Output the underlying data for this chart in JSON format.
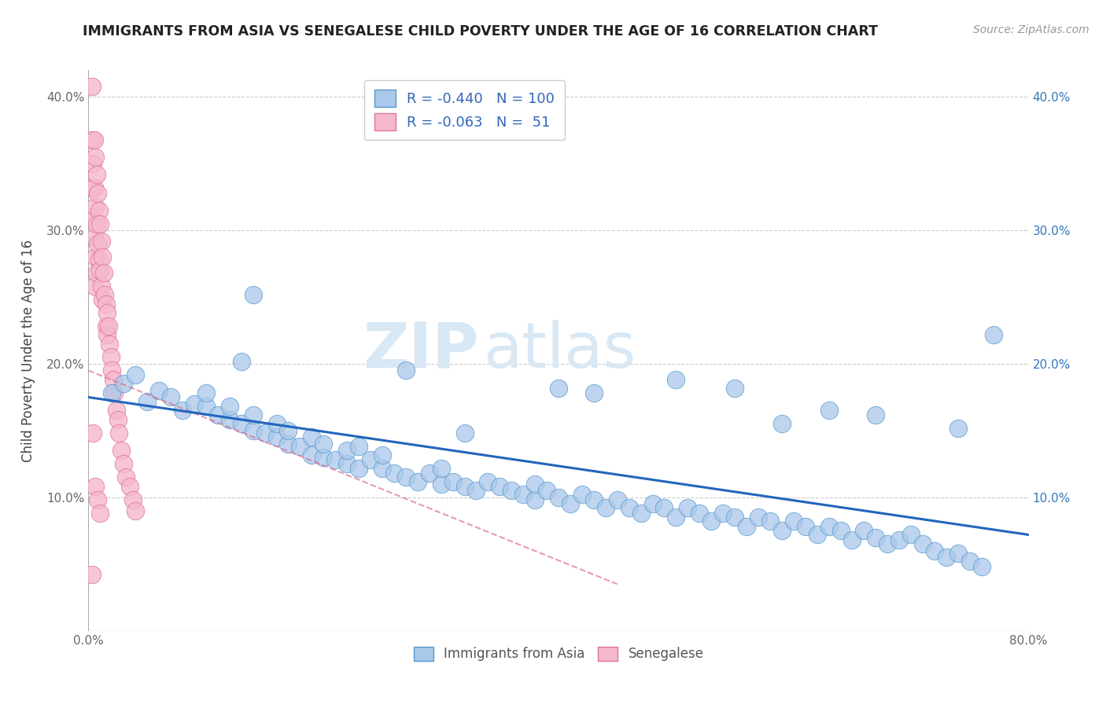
{
  "title": "IMMIGRANTS FROM ASIA VS SENEGALESE CHILD POVERTY UNDER THE AGE OF 16 CORRELATION CHART",
  "source": "Source: ZipAtlas.com",
  "ylabel": "Child Poverty Under the Age of 16",
  "xlim": [
    0.0,
    0.8
  ],
  "ylim": [
    0.0,
    0.42
  ],
  "x_ticks": [
    0.0,
    0.1,
    0.2,
    0.3,
    0.4,
    0.5,
    0.6,
    0.7,
    0.8
  ],
  "y_ticks": [
    0.0,
    0.1,
    0.2,
    0.3,
    0.4
  ],
  "legend_r_blue": "-0.440",
  "legend_n_blue": "100",
  "legend_r_pink": "-0.063",
  "legend_n_pink": " 51",
  "blue_color": "#aac8ea",
  "blue_edge_color": "#5599cc",
  "pink_color": "#f5b8cb",
  "pink_edge_color": "#dd7799",
  "blue_line_color": "#2266bb",
  "pink_line_color": "#dd6688",
  "watermark_zip": "ZIP",
  "watermark_atlas": "atlas",
  "blue_scatter_x": [
    0.02,
    0.03,
    0.04,
    0.05,
    0.06,
    0.07,
    0.08,
    0.09,
    0.1,
    0.1,
    0.11,
    0.12,
    0.12,
    0.13,
    0.14,
    0.14,
    0.15,
    0.16,
    0.16,
    0.17,
    0.17,
    0.18,
    0.19,
    0.19,
    0.2,
    0.2,
    0.21,
    0.22,
    0.22,
    0.23,
    0.24,
    0.25,
    0.25,
    0.26,
    0.27,
    0.28,
    0.29,
    0.3,
    0.3,
    0.31,
    0.32,
    0.33,
    0.34,
    0.35,
    0.36,
    0.37,
    0.38,
    0.38,
    0.39,
    0.4,
    0.41,
    0.42,
    0.43,
    0.44,
    0.45,
    0.46,
    0.47,
    0.48,
    0.49,
    0.5,
    0.51,
    0.52,
    0.53,
    0.54,
    0.55,
    0.56,
    0.57,
    0.58,
    0.59,
    0.6,
    0.61,
    0.62,
    0.63,
    0.64,
    0.65,
    0.66,
    0.67,
    0.68,
    0.69,
    0.7,
    0.71,
    0.72,
    0.73,
    0.74,
    0.75,
    0.76,
    0.14,
    0.27,
    0.4,
    0.43,
    0.5,
    0.55,
    0.59,
    0.63,
    0.67,
    0.74,
    0.77,
    0.13,
    0.23,
    0.32
  ],
  "blue_scatter_y": [
    0.178,
    0.185,
    0.192,
    0.172,
    0.18,
    0.175,
    0.165,
    0.17,
    0.168,
    0.178,
    0.162,
    0.158,
    0.168,
    0.155,
    0.15,
    0.162,
    0.148,
    0.145,
    0.155,
    0.14,
    0.15,
    0.138,
    0.132,
    0.145,
    0.13,
    0.14,
    0.128,
    0.125,
    0.135,
    0.122,
    0.128,
    0.122,
    0.132,
    0.118,
    0.115,
    0.112,
    0.118,
    0.11,
    0.122,
    0.112,
    0.108,
    0.105,
    0.112,
    0.108,
    0.105,
    0.102,
    0.098,
    0.11,
    0.105,
    0.1,
    0.095,
    0.102,
    0.098,
    0.092,
    0.098,
    0.092,
    0.088,
    0.095,
    0.092,
    0.085,
    0.092,
    0.088,
    0.082,
    0.088,
    0.085,
    0.078,
    0.085,
    0.082,
    0.075,
    0.082,
    0.078,
    0.072,
    0.078,
    0.075,
    0.068,
    0.075,
    0.07,
    0.065,
    0.068,
    0.072,
    0.065,
    0.06,
    0.055,
    0.058,
    0.052,
    0.048,
    0.252,
    0.195,
    0.182,
    0.178,
    0.188,
    0.182,
    0.155,
    0.165,
    0.162,
    0.152,
    0.222,
    0.202,
    0.138,
    0.148
  ],
  "pink_scatter_x": [
    0.003,
    0.003,
    0.003,
    0.004,
    0.004,
    0.005,
    0.005,
    0.005,
    0.005,
    0.006,
    0.006,
    0.006,
    0.007,
    0.007,
    0.007,
    0.008,
    0.008,
    0.009,
    0.009,
    0.01,
    0.01,
    0.011,
    0.011,
    0.012,
    0.012,
    0.013,
    0.014,
    0.015,
    0.015,
    0.016,
    0.016,
    0.017,
    0.018,
    0.019,
    0.02,
    0.021,
    0.022,
    0.024,
    0.025,
    0.026,
    0.028,
    0.03,
    0.032,
    0.035,
    0.038,
    0.04,
    0.004,
    0.006,
    0.008,
    0.01,
    0.003
  ],
  "pink_scatter_y": [
    0.408,
    0.368,
    0.332,
    0.35,
    0.31,
    0.368,
    0.332,
    0.295,
    0.258,
    0.355,
    0.318,
    0.28,
    0.342,
    0.305,
    0.268,
    0.328,
    0.29,
    0.315,
    0.278,
    0.305,
    0.27,
    0.292,
    0.258,
    0.28,
    0.248,
    0.268,
    0.252,
    0.245,
    0.228,
    0.238,
    0.222,
    0.228,
    0.215,
    0.205,
    0.195,
    0.188,
    0.178,
    0.165,
    0.158,
    0.148,
    0.135,
    0.125,
    0.115,
    0.108,
    0.098,
    0.09,
    0.148,
    0.108,
    0.098,
    0.088,
    0.042
  ],
  "blue_line_x0": 0.0,
  "blue_line_x1": 0.8,
  "blue_line_y0": 0.175,
  "blue_line_y1": 0.072,
  "pink_line_x0": 0.0,
  "pink_line_x1": 0.45,
  "pink_line_y0": 0.195,
  "pink_line_y1": 0.035
}
